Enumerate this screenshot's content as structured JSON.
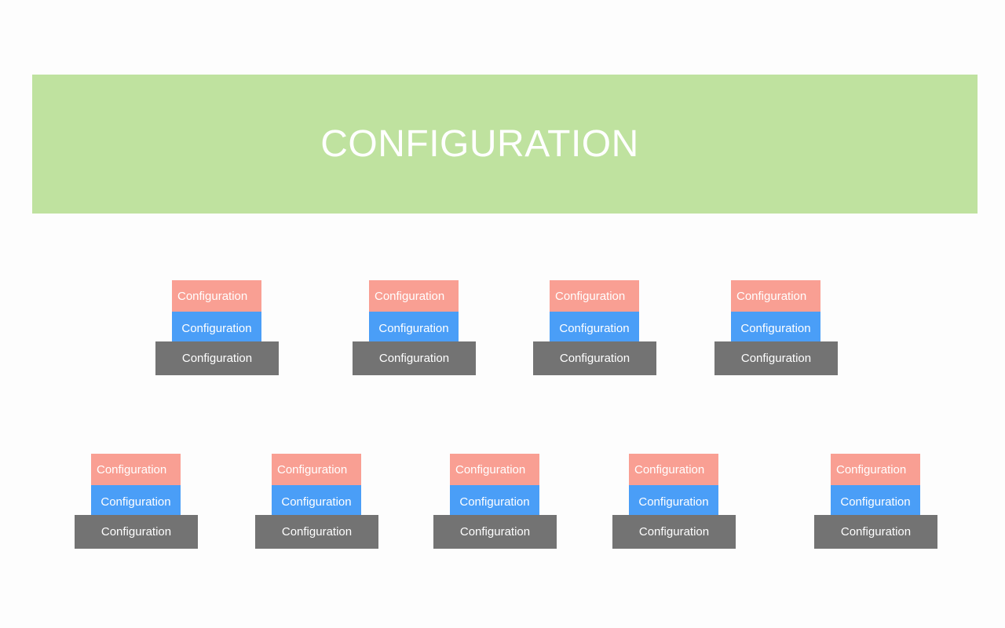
{
  "banner": {
    "title": "CONFIGURATION"
  },
  "row1": [
    {
      "top": "Configuration",
      "middle": "Configuration",
      "base": "Configuration"
    },
    {
      "top": "Configuration",
      "middle": "Configuration",
      "base": "Configuration"
    },
    {
      "top": "Configuration",
      "middle": "Configuration",
      "base": "Configuration"
    },
    {
      "top": "Configuration",
      "middle": "Configuration",
      "base": "Configuration"
    }
  ],
  "row2": [
    {
      "top": "Configuration",
      "middle": "Configuration",
      "base": "Configuration"
    },
    {
      "top": "Configuration",
      "middle": "Configuration",
      "base": "Configuration"
    },
    {
      "top": "Configuration",
      "middle": "Configuration",
      "base": "Configuration"
    },
    {
      "top": "Configuration",
      "middle": "Configuration",
      "base": "Configuration"
    },
    {
      "top": "Configuration",
      "middle": "Configuration",
      "base": "Configuration"
    }
  ],
  "colors": {
    "banner": "#bfe29f",
    "top_box": "#f99f93",
    "middle_box": "#4a9ef7",
    "base_box": "#737373",
    "text": "#ffffff"
  }
}
